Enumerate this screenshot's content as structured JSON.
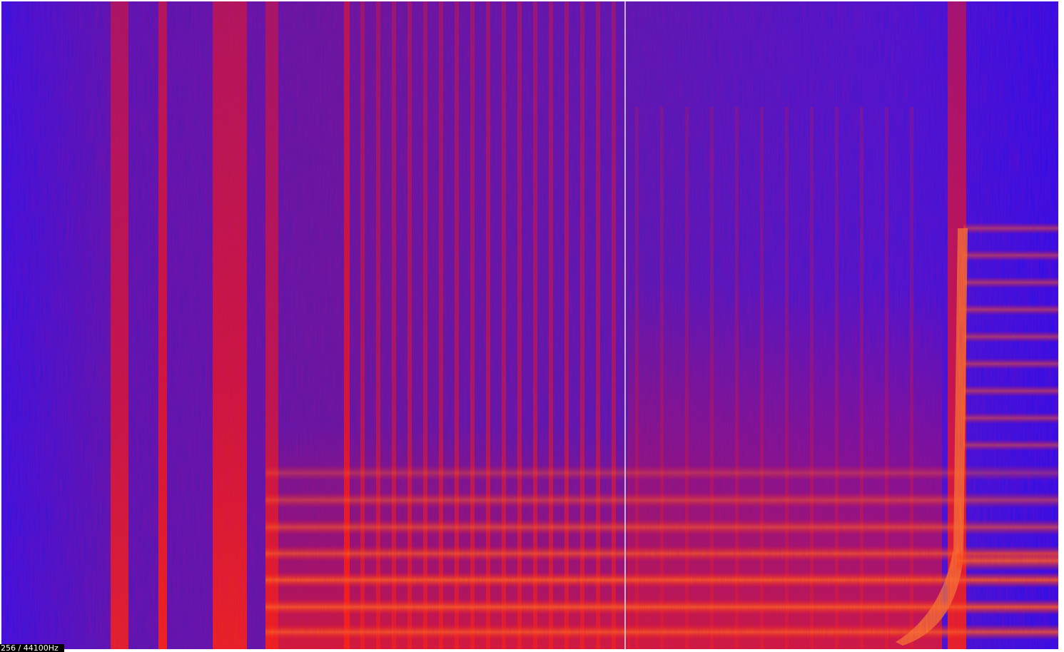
{
  "status": {
    "label": "256 / 44100Hz"
  }
}
